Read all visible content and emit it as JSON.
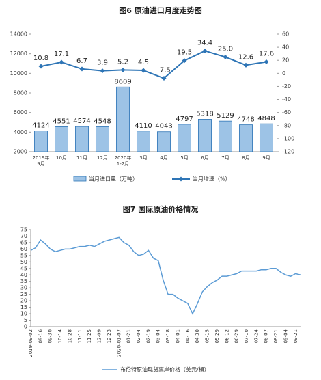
{
  "chart_data": [
    {
      "type": "bar-line",
      "title": "图6  原油进口月度走势图",
      "categories": [
        "2019年\n9月",
        "10月",
        "11月",
        "12月",
        "2020年\n1-2月",
        "3月",
        "4月",
        "5月",
        "6月",
        "7月",
        "8月",
        "9月"
      ],
      "series": [
        {
          "name": "当月进口量（万吨）",
          "type": "bar",
          "color": "#9dc3e6",
          "values": [
            4124,
            4551,
            4574,
            4548,
            8609,
            4110,
            4043,
            4797,
            5318,
            5129,
            4748,
            4848
          ]
        },
        {
          "name": "当月增速（%）",
          "type": "line",
          "axis": "y2",
          "color": "#2e75b6",
          "values": [
            10.8,
            17.1,
            6.7,
            3.9,
            5.2,
            4.5,
            -7.5,
            19.5,
            34.4,
            25.0,
            12.6,
            17.6
          ],
          "value_labels": [
            "10.8",
            "17.1",
            "6.7",
            "3.9",
            "5.2",
            "4.5",
            "-7.5",
            "19.5",
            "34.4",
            "25.0",
            "12.6",
            "17.6"
          ]
        }
      ],
      "ylim": [
        2000,
        14000
      ],
      "yticks": [
        2000,
        4000,
        6000,
        8000,
        10000,
        12000,
        14000
      ],
      "y2lim": [
        -120,
        60
      ],
      "y2ticks": [
        -120,
        -100,
        -80,
        -60,
        -40,
        -20,
        0,
        20,
        40,
        60
      ],
      "legend": "bottom"
    },
    {
      "type": "line",
      "title": "图7  国际原油价格情况",
      "categories": [
        "2019-09-02",
        null,
        "09-16",
        null,
        "09-30",
        null,
        "10-14",
        null,
        "10-28",
        null,
        "11-11",
        null,
        "11-25",
        null,
        "12-09",
        null,
        "12-23",
        null,
        "2020-01-07",
        null,
        "01-21",
        null,
        "02-04",
        null,
        "02-19",
        null,
        "03-04",
        null,
        "03-18",
        null,
        "04-01",
        null,
        "04-16",
        null,
        "04-30",
        null,
        "05-15",
        null,
        "05-29",
        null,
        "06-12",
        null,
        "06-29",
        null,
        "07-10",
        null,
        "07-24",
        null,
        "08-07",
        null,
        "08-21",
        null,
        "09-04",
        null,
        "09-21",
        null
      ],
      "series": [
        {
          "name": "布伦特原油现货离岸价格（美元/桶）",
          "color": "#5b9bd5",
          "values": [
            59,
            61,
            67,
            64,
            60,
            58,
            59,
            60,
            60,
            61,
            62,
            62,
            63,
            62,
            64,
            66,
            67,
            68,
            69,
            65,
            63,
            58,
            55,
            56,
            59,
            53,
            51,
            36,
            25,
            25,
            22,
            20,
            18,
            10,
            18,
            27,
            31,
            34,
            36,
            39,
            39,
            40,
            41,
            43,
            43,
            43,
            43,
            44,
            44,
            45,
            45,
            42,
            40,
            39,
            41,
            40
          ]
        }
      ],
      "ylim": [
        0,
        75
      ],
      "yticks": [
        0,
        5,
        10,
        15,
        20,
        25,
        30,
        35,
        40,
        45,
        50,
        55,
        60,
        65,
        70,
        75
      ],
      "legend": "bottom"
    }
  ]
}
